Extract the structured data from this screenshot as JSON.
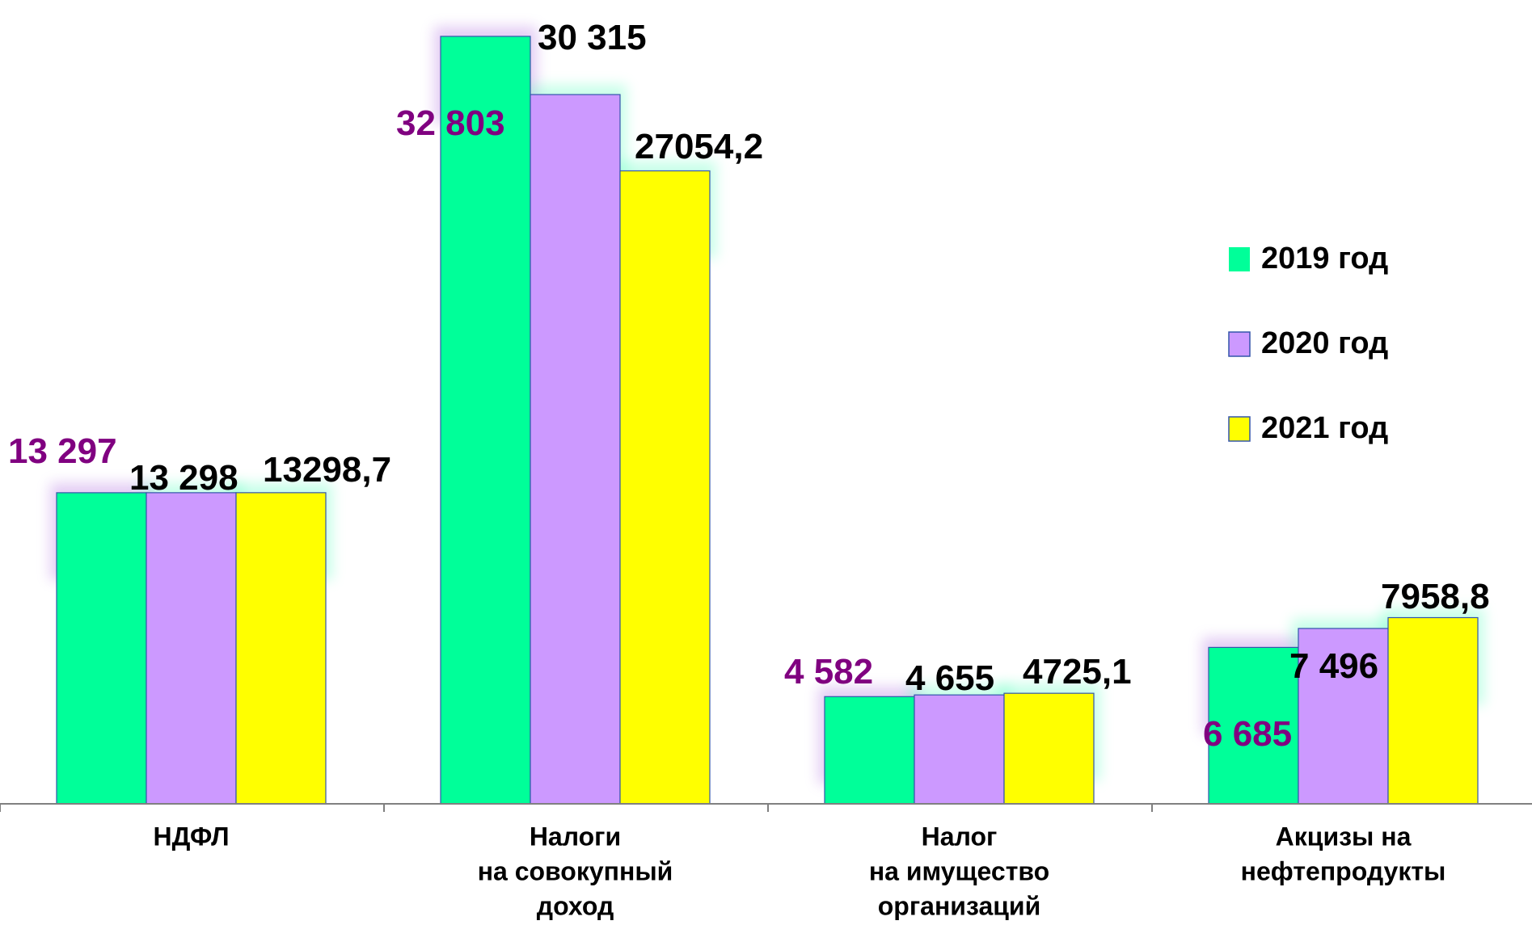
{
  "chart_data": {
    "type": "bar",
    "categories": [
      [
        "НДФЛ"
      ],
      [
        "Налоги",
        "на совокупный",
        "доход"
      ],
      [
        "Налог",
        "на имущество",
        "организаций"
      ],
      [
        "Акцизы на",
        "нефтепродукты"
      ]
    ],
    "series": [
      {
        "name": "2019 год",
        "color": "#00ff99",
        "values": [
          13297,
          32803,
          4582,
          6685
        ],
        "labels": [
          "13 297",
          "32 803",
          "4 582",
          "6 685"
        ]
      },
      {
        "name": "2020 год",
        "color": "#cc99ff",
        "values": [
          13298,
          30315,
          4655,
          7496
        ],
        "labels": [
          "13 298",
          "30 315",
          "4 655",
          "7 496"
        ]
      },
      {
        "name": "2021 год",
        "color": "#ffff00",
        "values": [
          13298.7,
          27054.2,
          4725.1,
          7958.8
        ],
        "labels": [
          "13298,7",
          "27054,2",
          "4725,1",
          "7958,8"
        ]
      }
    ],
    "label_colors": {
      "purple": "#800080",
      "black": "#000000"
    },
    "ylim": [
      0,
      33000
    ],
    "legend_position": "right",
    "grid": false
  }
}
